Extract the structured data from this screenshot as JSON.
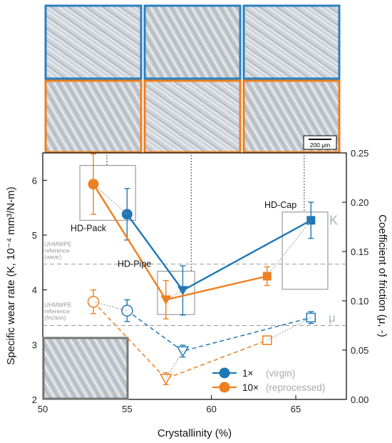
{
  "chart_data": {
    "type": "scatter",
    "xlabel": "Crystallinity (%)",
    "ylabel_left": "Specific wear rate (K, 10⁻⁴ mm³/N-m)",
    "ylabel_right": "Coefficient of friction (μ, -)",
    "xlim": [
      50,
      68
    ],
    "ylim_left": [
      2,
      6.5
    ],
    "ylim_right": [
      0,
      0.25
    ],
    "xticks": [
      "50",
      "55",
      "60",
      "65"
    ],
    "yticks_left": [
      "2",
      "3",
      "4",
      "5",
      "6"
    ],
    "yticks_right": [
      "0.00",
      "0.05",
      "0.10",
      "0.15",
      "0.20",
      "0.25"
    ],
    "materials": [
      {
        "label": "HD-Pack",
        "x": 53.0
      },
      {
        "label": "HD-Pipe",
        "x": 57.9
      },
      {
        "label": "HD-Cap",
        "x": 65.5
      }
    ],
    "series": [
      {
        "name": "1×",
        "note": "(virgin)",
        "color": "#1f78b4",
        "marker": "circle",
        "quantity": "K",
        "x": [
          55.0,
          58.3,
          65.9
        ],
        "y": [
          5.38,
          3.99,
          5.27
        ],
        "err": [
          0.47,
          0.45,
          0.33
        ]
      },
      {
        "name": "10×",
        "note": "(reprocessed)",
        "color": "#f07f1e",
        "marker": "circle",
        "quantity": "K",
        "x": [
          53.0,
          57.3,
          63.3
        ],
        "y": [
          5.93,
          3.82,
          4.25
        ],
        "err": [
          0.55,
          0.35,
          0.17
        ]
      },
      {
        "name": "1× μ",
        "color": "#1f78b4",
        "marker": "open",
        "quantity": "mu",
        "x": [
          55.0,
          58.3,
          65.9
        ],
        "y": [
          0.09,
          0.049,
          0.083
        ],
        "err": [
          0.011,
          0.006,
          0.006
        ]
      },
      {
        "name": "10× μ",
        "color": "#f07f1e",
        "marker": "open",
        "quantity": "mu",
        "x": [
          53.0,
          57.3,
          63.3
        ],
        "y": [
          0.099,
          0.021,
          0.06
        ],
        "err": [
          0.012,
          0.006,
          0.003
        ]
      }
    ],
    "annotations": {
      "K": "K",
      "mu": "μ",
      "ref_wear": [
        "UHMWPE",
        "reference",
        "(wear)"
      ],
      "ref_friction": [
        "UHMWPE",
        "reference",
        "(friction)"
      ],
      "scale_bar": "200 μm"
    },
    "reference_lines": {
      "wear_K": 4.47,
      "friction_K": 3.35
    }
  }
}
